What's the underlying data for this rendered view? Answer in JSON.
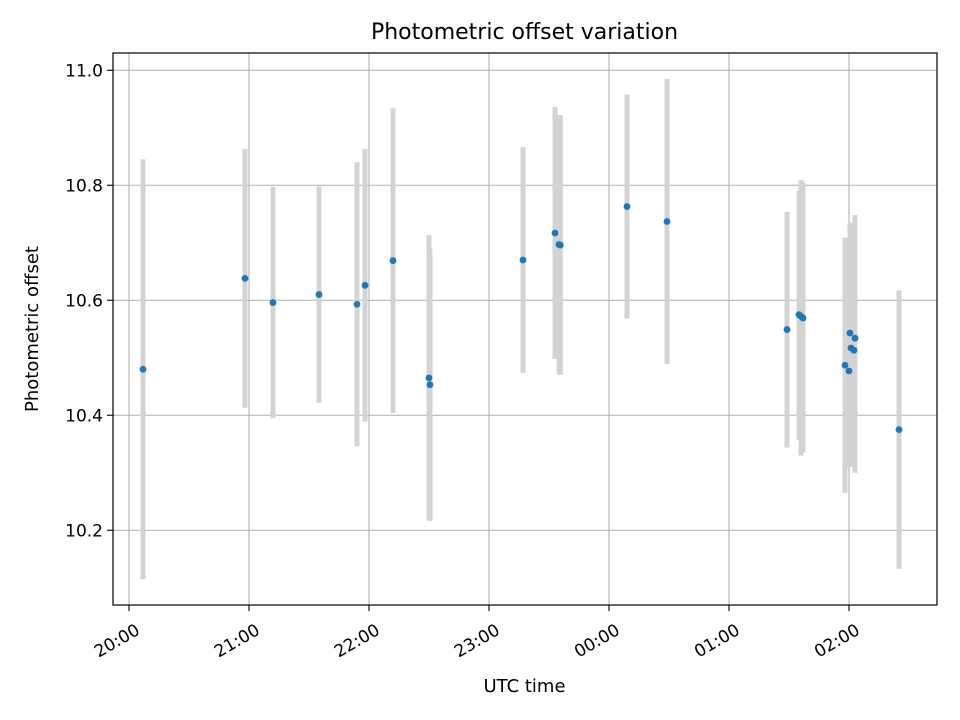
{
  "chart_data": {
    "type": "scatter",
    "title": "Photometric offset variation",
    "xlabel": "UTC time",
    "ylabel": "Photometric offset",
    "x_is_time": true,
    "xlim": [
      "2023-01-01T19:52:00",
      "2023-01-02T02:44:00"
    ],
    "ylim": [
      10.07,
      11.03
    ],
    "xticks": [
      {
        "t": "2023-01-01T20:00:00",
        "label": "20:00"
      },
      {
        "t": "2023-01-01T21:00:00",
        "label": "21:00"
      },
      {
        "t": "2023-01-01T22:00:00",
        "label": "22:00"
      },
      {
        "t": "2023-01-01T23:00:00",
        "label": "23:00"
      },
      {
        "t": "2023-01-02T00:00:00",
        "label": "00:00"
      },
      {
        "t": "2023-01-02T01:00:00",
        "label": "01:00"
      },
      {
        "t": "2023-01-02T02:00:00",
        "label": "02:00"
      }
    ],
    "yticks": [
      10.2,
      10.4,
      10.6,
      10.8,
      11.0
    ],
    "ytick_labels": [
      "10.2",
      "10.4",
      "10.6",
      "10.8",
      "11.0"
    ],
    "grid": true,
    "colors": {
      "points": "#1f77b4",
      "errorbars": "#d3d3d3",
      "grid": "#b0b0b0"
    },
    "points": [
      {
        "t": "2023-01-01T20:07:00",
        "y": 10.48,
        "lo": 10.115,
        "hi": 10.845
      },
      {
        "t": "2023-01-01T20:58:00",
        "y": 10.638,
        "lo": 10.413,
        "hi": 10.863
      },
      {
        "t": "2023-01-01T21:12:00",
        "y": 10.596,
        "lo": 10.395,
        "hi": 10.797
      },
      {
        "t": "2023-01-01T21:35:00",
        "y": 10.61,
        "lo": 10.422,
        "hi": 10.798
      },
      {
        "t": "2023-01-01T21:54:00",
        "y": 10.593,
        "lo": 10.346,
        "hi": 10.84
      },
      {
        "t": "2023-01-01T21:58:00",
        "y": 10.626,
        "lo": 10.389,
        "hi": 10.863
      },
      {
        "t": "2023-01-01T22:12:00",
        "y": 10.669,
        "lo": 10.404,
        "hi": 10.934
      },
      {
        "t": "2023-01-01T22:30:00",
        "y": 10.465,
        "lo": 10.217,
        "hi": 10.713
      },
      {
        "t": "2023-01-01T22:30:30",
        "y": 10.453,
        "lo": 10.216,
        "hi": 10.69
      },
      {
        "t": "2023-01-01T23:17:00",
        "y": 10.67,
        "lo": 10.474,
        "hi": 10.866
      },
      {
        "t": "2023-01-01T23:33:00",
        "y": 10.717,
        "lo": 10.498,
        "hi": 10.936
      },
      {
        "t": "2023-01-01T23:35:00",
        "y": 10.697,
        "lo": 10.472,
        "hi": 10.922
      },
      {
        "t": "2023-01-01T23:35:40",
        "y": 10.696,
        "lo": 10.47,
        "hi": 10.922
      },
      {
        "t": "2023-01-02T00:09:00",
        "y": 10.763,
        "lo": 10.568,
        "hi": 10.958
      },
      {
        "t": "2023-01-02T00:29:00",
        "y": 10.737,
        "lo": 10.489,
        "hi": 10.985
      },
      {
        "t": "2023-01-02T01:29:00",
        "y": 10.549,
        "lo": 10.344,
        "hi": 10.754
      },
      {
        "t": "2023-01-02T01:35:00",
        "y": 10.575,
        "lo": 10.357,
        "hi": 10.79
      },
      {
        "t": "2023-01-02T01:36:00",
        "y": 10.572,
        "lo": 10.33,
        "hi": 10.809
      },
      {
        "t": "2023-01-02T01:37:00",
        "y": 10.569,
        "lo": 10.335,
        "hi": 10.805
      },
      {
        "t": "2023-01-02T01:58:00",
        "y": 10.487,
        "lo": 10.265,
        "hi": 10.709
      },
      {
        "t": "2023-01-02T02:00:00",
        "y": 10.477,
        "lo": 10.31,
        "hi": 10.66
      },
      {
        "t": "2023-01-02T02:00:30",
        "y": 10.543,
        "lo": 10.345,
        "hi": 10.735
      },
      {
        "t": "2023-01-02T02:01:00",
        "y": 10.517,
        "lo": 10.31,
        "hi": 10.725
      },
      {
        "t": "2023-01-02T02:02:30",
        "y": 10.513,
        "lo": 10.326,
        "hi": 10.73
      },
      {
        "t": "2023-01-02T02:03:00",
        "y": 10.534,
        "lo": 10.3,
        "hi": 10.748
      },
      {
        "t": "2023-01-02T02:25:00",
        "y": 10.375,
        "lo": 10.133,
        "hi": 10.617
      }
    ]
  }
}
